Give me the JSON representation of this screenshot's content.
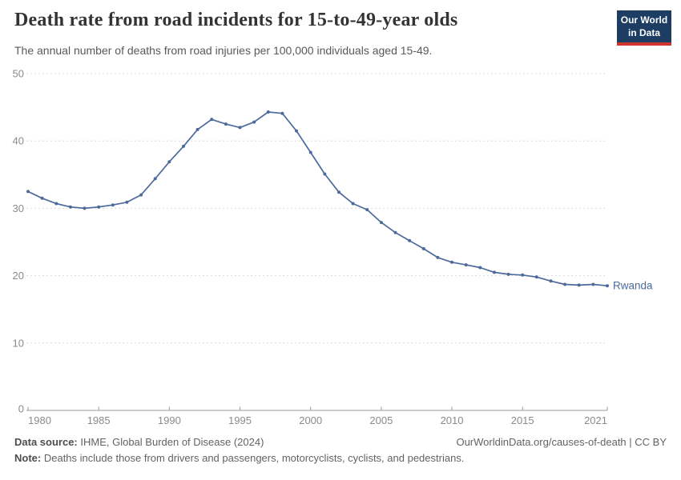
{
  "header": {
    "title": "Death rate from road incidents for 15-to-49-year olds",
    "subtitle": "The annual number of deaths from road injuries per 100,000 individuals aged 15-49.",
    "logo": {
      "line1": "Our World",
      "line2": "in Data",
      "bg": "#1d3d63",
      "accent": "#d0342c"
    }
  },
  "chart_data": {
    "type": "line",
    "title": "Death rate from road incidents for 15-to-49-year olds",
    "xlabel": "",
    "ylabel": "",
    "xlim": [
      1980,
      2021
    ],
    "ylim": [
      0,
      50
    ],
    "yticks": [
      0,
      10,
      20,
      30,
      40,
      50
    ],
    "xticks": [
      1980,
      1985,
      1990,
      1995,
      2000,
      2005,
      2010,
      2015,
      2021
    ],
    "grid": "horizontal-dashed",
    "legend_position": "end-of-line-label",
    "line_color": "#4c6a9c",
    "series": [
      {
        "name": "Rwanda",
        "x": [
          1980,
          1981,
          1982,
          1983,
          1984,
          1985,
          1986,
          1987,
          1988,
          1989,
          1990,
          1991,
          1992,
          1993,
          1994,
          1995,
          1996,
          1997,
          1998,
          1999,
          2000,
          2001,
          2002,
          2003,
          2004,
          2005,
          2006,
          2007,
          2008,
          2009,
          2010,
          2011,
          2012,
          2013,
          2014,
          2015,
          2016,
          2017,
          2018,
          2019,
          2020,
          2021
        ],
        "values": [
          32.5,
          31.5,
          30.7,
          30.2,
          30.0,
          30.2,
          30.5,
          30.9,
          32.0,
          34.4,
          36.9,
          39.2,
          41.7,
          43.2,
          42.5,
          42.0,
          42.8,
          44.3,
          44.1,
          41.5,
          38.3,
          35.1,
          32.4,
          30.7,
          29.8,
          27.9,
          26.4,
          25.2,
          24.0,
          22.7,
          22.0,
          21.6,
          21.2,
          20.5,
          20.2,
          20.1,
          19.8,
          19.2,
          18.7,
          18.6,
          18.7,
          18.5
        ]
      }
    ]
  },
  "footer": {
    "source_label": "Data source:",
    "source_value": "IHME, Global Burden of Disease (2024)",
    "link": "OurWorldinData.org/causes-of-death | CC BY",
    "note_label": "Note:",
    "note_value": "Deaths include those from drivers and passengers, motorcyclists, cyclists, and pedestrians."
  }
}
